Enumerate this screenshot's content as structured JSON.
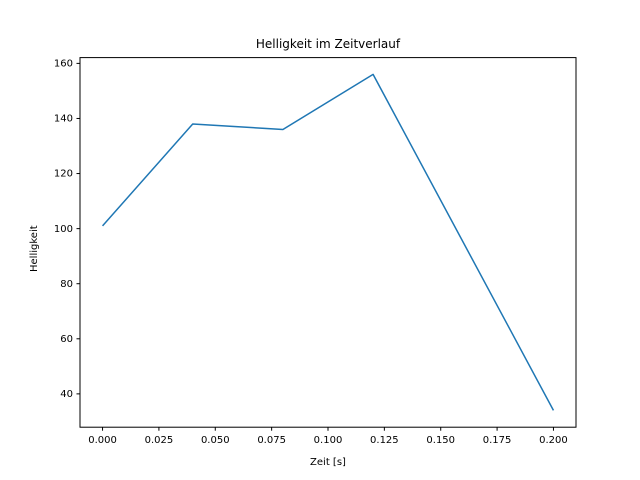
{
  "chart_data": {
    "type": "line",
    "title": "Helligkeit im Zeitverlauf",
    "xlabel": "Zeit [s]",
    "ylabel": "Helligkeit",
    "x": [
      0.0,
      0.04,
      0.08,
      0.12,
      0.2
    ],
    "y": [
      101,
      138,
      136,
      156,
      34
    ],
    "xlim": [
      -0.01,
      0.21
    ],
    "ylim": [
      27.9,
      162.1
    ],
    "xtick_values": [
      0.0,
      0.025,
      0.05,
      0.075,
      0.1,
      0.125,
      0.15,
      0.175,
      0.2
    ],
    "xtick_labels": [
      "0.000",
      "0.025",
      "0.050",
      "0.075",
      "0.100",
      "0.125",
      "0.150",
      "0.175",
      "0.200"
    ],
    "ytick_values": [
      40,
      60,
      80,
      100,
      120,
      140,
      160
    ],
    "ytick_labels": [
      "40",
      "60",
      "80",
      "100",
      "120",
      "140",
      "160"
    ],
    "line_color": "#1f77b4",
    "axis_color": "#000000",
    "grid": false,
    "legend_position": "none"
  }
}
